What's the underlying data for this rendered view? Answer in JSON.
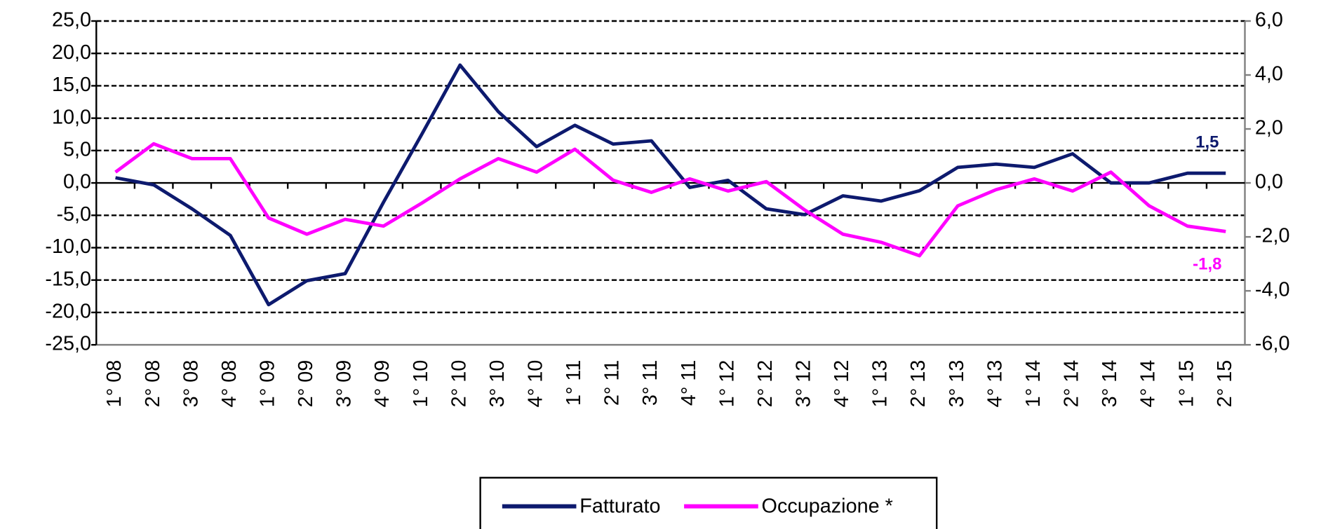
{
  "chart_data": {
    "type": "line",
    "categories": [
      "1° 08",
      "2° 08",
      "3° 08",
      "4° 08",
      "1° 09",
      "2° 09",
      "3° 09",
      "4° 09",
      "1° 10",
      "2° 10",
      "3° 10",
      "4° 10",
      "1° 11",
      "2° 11",
      "3° 11",
      "4° 11",
      "1° 12",
      "2° 12",
      "3° 12",
      "4° 12",
      "1° 13",
      "2° 13",
      "3° 13",
      "4° 13",
      "1° 14",
      "2° 14",
      "3° 14",
      "4° 14",
      "1° 15",
      "2° 15"
    ],
    "series": [
      {
        "name": "Fatturato",
        "color": "#0d1a6e",
        "values": [
          0.8,
          -0.3,
          -4.0,
          -8.1,
          -18.8,
          -15.1,
          -14.0,
          -3.0,
          7.5,
          18.2,
          11.0,
          5.6,
          8.9,
          6.0,
          6.5,
          -0.7,
          0.4,
          -4.0,
          -4.9,
          -2.0,
          -2.8,
          -1.2,
          2.4,
          2.9,
          2.4,
          4.5,
          0.0,
          0.0,
          1.5,
          1.5
        ],
        "value_labels": [
          null,
          null,
          null,
          null,
          null,
          null,
          null,
          null,
          null,
          null,
          null,
          null,
          null,
          null,
          null,
          null,
          null,
          null,
          null,
          null,
          null,
          null,
          null,
          null,
          null,
          null,
          null,
          null,
          null,
          "1,5"
        ]
      },
      {
        "name": "Occupazione *",
        "color": "#ff00ff",
        "axis": "y2",
        "values": [
          0.4,
          1.45,
          0.9,
          0.9,
          -1.3,
          -1.9,
          -1.35,
          -1.6,
          -0.75,
          0.15,
          0.9,
          0.4,
          1.25,
          0.1,
          -0.35,
          0.15,
          -0.3,
          0.05,
          -1.0,
          -1.9,
          -2.2,
          -2.7,
          -0.85,
          -0.25,
          0.15,
          -0.3,
          0.4,
          -0.85,
          -1.6,
          -1.8
        ],
        "value_labels": [
          null,
          null,
          null,
          null,
          null,
          null,
          null,
          null,
          null,
          null,
          null,
          null,
          null,
          null,
          null,
          null,
          null,
          null,
          null,
          null,
          null,
          null,
          null,
          null,
          null,
          null,
          null,
          null,
          null,
          "-1,8"
        ]
      }
    ],
    "ylim": [
      -25,
      25
    ],
    "yticks": [
      {
        "value": -25,
        "label": "-25,0"
      },
      {
        "value": -20,
        "label": "-20,0"
      },
      {
        "value": -15,
        "label": "-15,0"
      },
      {
        "value": -10,
        "label": "-10,0"
      },
      {
        "value": -5,
        "label": "-5,0"
      },
      {
        "value": 0,
        "label": "0,0"
      },
      {
        "value": 5,
        "label": "5,0"
      },
      {
        "value": 10,
        "label": "10,0"
      },
      {
        "value": 15,
        "label": "15,0"
      },
      {
        "value": 20,
        "label": "20,0"
      },
      {
        "value": 25,
        "label": "25,0"
      }
    ],
    "y2lim": [
      -6,
      6
    ],
    "y2ticks": [
      {
        "value": -6,
        "label": "-6,0"
      },
      {
        "value": -4,
        "label": "-4,0"
      },
      {
        "value": -2,
        "label": "-2,0"
      },
      {
        "value": 0,
        "label": "0,0"
      },
      {
        "value": 2,
        "label": "2,0"
      },
      {
        "value": 4,
        "label": "4,0"
      },
      {
        "value": 6,
        "label": "6,0"
      }
    ],
    "grid": true,
    "legend": "bottom"
  }
}
